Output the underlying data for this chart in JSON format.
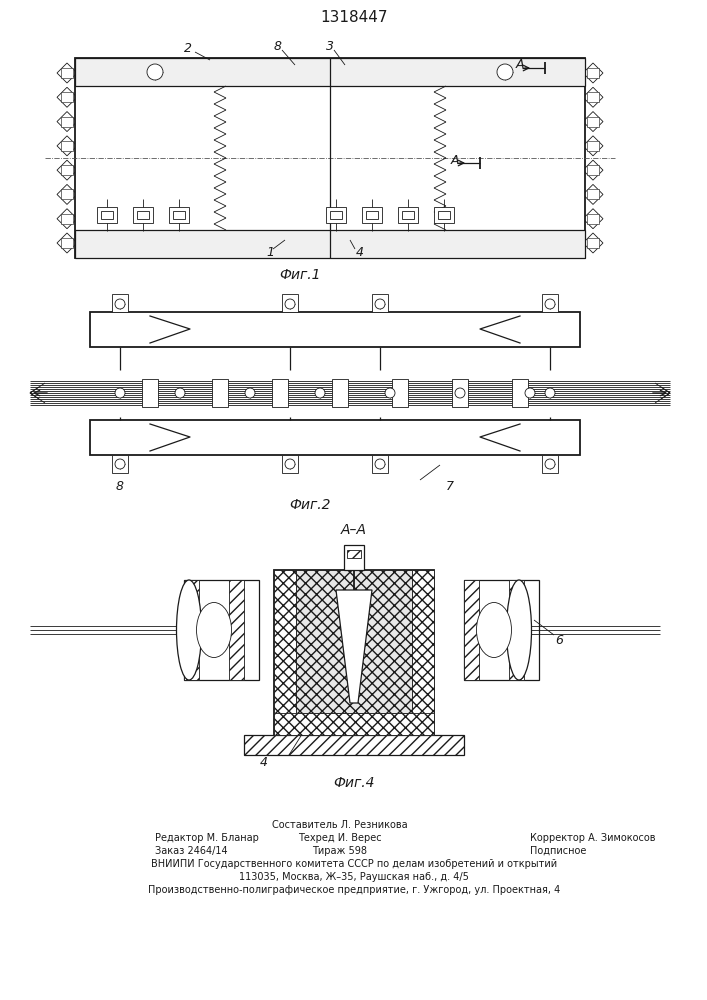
{
  "title": "1318447",
  "background_color": "#ffffff",
  "line_color": "#1a1a1a",
  "fig1_label": "Фиг.1",
  "fig2_label": "Фиг.2",
  "fig4_label": "Фиг.4",
  "footer_col1": [
    "",
    "Редактор М. Бланар",
    "Заказ 2464/14"
  ],
  "footer_col2": [
    "Составитель Л. Резникова",
    "Техред И. Верес",
    "Тираж 598"
  ],
  "footer_col3": [
    "",
    "Корректор А. Зимокосов",
    "Подписное"
  ],
  "footer_line4": "ВНИИПИ Государственного комитета СССР по делам изобретений и открытий",
  "footer_line5": "113035, Москва, Ж–35, Раушская наб., д. 4/5",
  "footer_line6": "Производственно-полиграфическое предприятие, г. Ужгород, ул. Проектная, 4"
}
